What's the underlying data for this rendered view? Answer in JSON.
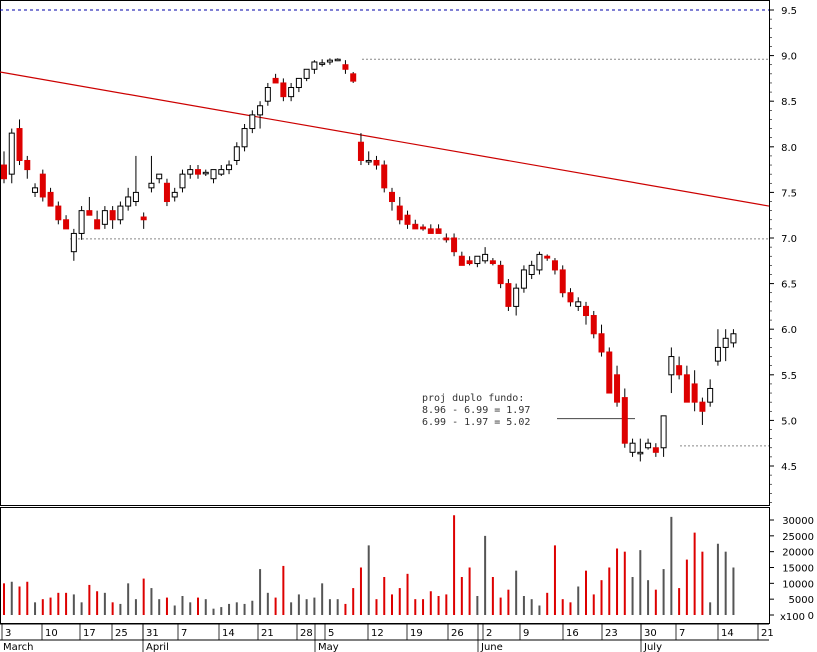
{
  "chart_data": {
    "type": "candlestick",
    "price_axis": {
      "ticks": [
        "9.5",
        "9.0",
        "8.5",
        "8.0",
        "7.5",
        "7.0",
        "6.5",
        "6.0",
        "5.5",
        "5.0",
        "4.5"
      ],
      "ylim": [
        4.0,
        9.6
      ],
      "scale": "linear"
    },
    "volume_axis": {
      "ticks": [
        "30000",
        "25000",
        "20000",
        "15000",
        "10000",
        "5000",
        "0"
      ],
      "multiplier_label": "x100",
      "ylim": [
        0,
        32000
      ]
    },
    "x_axis": {
      "day_labels": [
        "3",
        "10",
        "17",
        "25",
        "31",
        "7",
        "14",
        "21",
        "28",
        "5",
        "12",
        "19",
        "26",
        "2",
        "9",
        "16",
        "23",
        "30",
        "7",
        "14",
        "21"
      ],
      "month_labels": [
        "March",
        "April",
        "May",
        "June",
        "July"
      ]
    },
    "reference_lines": [
      {
        "kind": "horizontal-dashed",
        "value": 9.5,
        "color": "#0000aa"
      },
      {
        "kind": "horizontal-dotted",
        "value": 8.96,
        "color": "#888888"
      },
      {
        "kind": "horizontal-dotted",
        "value": 6.99,
        "color": "#888888"
      },
      {
        "kind": "horizontal-dotted",
        "value": 4.72,
        "color": "#888888"
      },
      {
        "kind": "trendline",
        "from": {
          "day": 0,
          "price": 8.82
        },
        "to": {
          "day": 95,
          "price": 7.35
        },
        "color": "#cc0000"
      },
      {
        "kind": "target-segment",
        "from_day": 69,
        "to_day": 79,
        "price": 5.02,
        "color": "#444444"
      }
    ],
    "annotation": {
      "lines": [
        "proj duplo fundo:",
        "8.96 - 6.99 = 1.97",
        "6.99 - 1.97 = 5.02"
      ]
    },
    "colors": {
      "up": "#ffffff",
      "down": "#dd0000",
      "up_volume": "#555555",
      "down_volume": "#dd0000"
    },
    "candles": [
      [
        7.8,
        7.95,
        7.6,
        7.65
      ],
      [
        7.7,
        8.2,
        7.6,
        8.15
      ],
      [
        8.2,
        8.3,
        7.8,
        7.85
      ],
      [
        7.85,
        7.9,
        7.65,
        7.75
      ],
      [
        7.5,
        7.6,
        7.45,
        7.55
      ],
      [
        7.7,
        7.75,
        7.4,
        7.45
      ],
      [
        7.5,
        7.55,
        7.35,
        7.35
      ],
      [
        7.35,
        7.4,
        7.15,
        7.2
      ],
      [
        7.2,
        7.25,
        7.1,
        7.1
      ],
      [
        6.85,
        7.1,
        6.75,
        7.05
      ],
      [
        7.05,
        7.35,
        6.98,
        7.3
      ],
      [
        7.3,
        7.45,
        7.25,
        7.25
      ],
      [
        7.2,
        7.3,
        7.1,
        7.1
      ],
      [
        7.15,
        7.35,
        7.1,
        7.3
      ],
      [
        7.3,
        7.35,
        7.1,
        7.2
      ],
      [
        7.2,
        7.4,
        7.15,
        7.35
      ],
      [
        7.35,
        7.55,
        7.3,
        7.45
      ],
      [
        7.4,
        7.9,
        7.35,
        7.5
      ],
      [
        7.23,
        7.28,
        7.1,
        7.2
      ],
      [
        7.55,
        7.9,
        7.5,
        7.6
      ],
      [
        7.65,
        7.7,
        7.6,
        7.7
      ],
      [
        7.6,
        7.65,
        7.35,
        7.4
      ],
      [
        7.45,
        7.55,
        7.4,
        7.5
      ],
      [
        7.55,
        7.75,
        7.5,
        7.7
      ],
      [
        7.7,
        7.8,
        7.65,
        7.75
      ],
      [
        7.75,
        7.8,
        7.65,
        7.7
      ],
      [
        7.72,
        7.75,
        7.68,
        7.72
      ],
      [
        7.65,
        7.75,
        7.6,
        7.75
      ],
      [
        7.7,
        7.8,
        7.68,
        7.75
      ],
      [
        7.75,
        7.85,
        7.7,
        7.8
      ],
      [
        7.85,
        8.05,
        7.8,
        8.0
      ],
      [
        8.0,
        8.25,
        7.95,
        8.2
      ],
      [
        8.2,
        8.4,
        8.15,
        8.35
      ],
      [
        8.35,
        8.5,
        8.2,
        8.45
      ],
      [
        8.5,
        8.7,
        8.45,
        8.65
      ],
      [
        8.75,
        8.8,
        8.7,
        8.7
      ],
      [
        8.7,
        8.75,
        8.5,
        8.55
      ],
      [
        8.55,
        8.7,
        8.5,
        8.65
      ],
      [
        8.65,
        8.75,
        8.6,
        8.75
      ],
      [
        8.75,
        8.85,
        8.72,
        8.85
      ],
      [
        8.85,
        8.95,
        8.8,
        8.93
      ],
      [
        8.92,
        8.96,
        8.88,
        8.92
      ],
      [
        8.93,
        8.97,
        8.9,
        8.95
      ],
      [
        8.96,
        8.97,
        8.94,
        8.96
      ],
      [
        8.9,
        8.95,
        8.8,
        8.85
      ],
      [
        8.8,
        8.82,
        8.7,
        8.72
      ],
      [
        8.05,
        8.15,
        7.8,
        7.85
      ],
      [
        7.85,
        7.95,
        7.8,
        7.85
      ],
      [
        7.85,
        7.9,
        7.75,
        7.8
      ],
      [
        7.8,
        7.85,
        7.5,
        7.55
      ],
      [
        7.5,
        7.55,
        7.3,
        7.4
      ],
      [
        7.35,
        7.45,
        7.15,
        7.2
      ],
      [
        7.25,
        7.3,
        7.1,
        7.15
      ],
      [
        7.15,
        7.2,
        7.1,
        7.1
      ],
      [
        7.12,
        7.15,
        7.08,
        7.1
      ],
      [
        7.1,
        7.15,
        7.05,
        7.05
      ],
      [
        7.1,
        7.15,
        7.05,
        7.05
      ],
      [
        7.0,
        7.05,
        6.95,
        6.98
      ],
      [
        7.0,
        7.05,
        6.8,
        6.85
      ],
      [
        6.8,
        6.85,
        6.7,
        6.7
      ],
      [
        6.75,
        6.8,
        6.7,
        6.72
      ],
      [
        6.72,
        6.8,
        6.68,
        6.8
      ],
      [
        6.75,
        6.9,
        6.72,
        6.82
      ],
      [
        6.75,
        6.78,
        6.7,
        6.72
      ],
      [
        6.7,
        6.75,
        6.45,
        6.5
      ],
      [
        6.5,
        6.55,
        6.2,
        6.25
      ],
      [
        6.25,
        6.5,
        6.15,
        6.45
      ],
      [
        6.45,
        6.7,
        6.4,
        6.65
      ],
      [
        6.6,
        6.75,
        6.55,
        6.7
      ],
      [
        6.65,
        6.85,
        6.6,
        6.82
      ],
      [
        6.8,
        6.82,
        6.75,
        6.78
      ],
      [
        6.75,
        6.78,
        6.6,
        6.65
      ],
      [
        6.65,
        6.7,
        6.35,
        6.4
      ],
      [
        6.4,
        6.45,
        6.25,
        6.3
      ],
      [
        6.25,
        6.35,
        6.2,
        6.3
      ],
      [
        6.25,
        6.3,
        6.05,
        6.15
      ],
      [
        6.15,
        6.2,
        5.9,
        5.95
      ],
      [
        5.95,
        6.05,
        5.7,
        5.75
      ],
      [
        5.75,
        5.8,
        5.3,
        5.3
      ],
      [
        5.5,
        5.6,
        5.15,
        5.2
      ],
      [
        5.25,
        5.35,
        4.7,
        4.75
      ],
      [
        4.65,
        4.8,
        4.6,
        4.75
      ],
      [
        4.65,
        4.8,
        4.55,
        4.65
      ],
      [
        4.7,
        4.8,
        4.68,
        4.75
      ],
      [
        4.7,
        4.75,
        4.6,
        4.65
      ],
      [
        4.7,
        5.05,
        4.6,
        5.05
      ],
      [
        5.5,
        5.8,
        5.3,
        5.7
      ],
      [
        5.6,
        5.7,
        5.45,
        5.5
      ],
      [
        5.5,
        5.6,
        5.2,
        5.2
      ],
      [
        5.4,
        5.55,
        5.1,
        5.2
      ],
      [
        5.2,
        5.25,
        4.95,
        5.1
      ],
      [
        5.2,
        5.45,
        5.15,
        5.35
      ],
      [
        5.65,
        6.0,
        5.6,
        5.8
      ],
      [
        5.8,
        6.0,
        5.65,
        5.9
      ],
      [
        5.85,
        6.0,
        5.8,
        5.95
      ]
    ],
    "volumes": [
      10000,
      10500,
      9000,
      10500,
      4000,
      5000,
      5500,
      7000,
      7000,
      6500,
      4000,
      9500,
      7500,
      7000,
      4000,
      3500,
      10000,
      5000,
      11500,
      8500,
      5000,
      5500,
      3000,
      6000,
      4000,
      5500,
      5000,
      2000,
      2500,
      3500,
      4000,
      3500,
      4500,
      14500,
      7000,
      5500,
      15500,
      4000,
      6500,
      5000,
      5500,
      10000,
      5000,
      5000,
      3500,
      8500,
      15000,
      22000,
      5000,
      12000,
      6500,
      8500,
      13000,
      5000,
      5000,
      7500,
      6000,
      6500,
      31500,
      12000,
      15000,
      6000,
      25000,
      12000,
      5500,
      8000,
      14000,
      6000,
      5000,
      3000,
      7000,
      22000,
      5000,
      4000,
      9000,
      14000,
      6500,
      11000,
      15000,
      21000,
      20000,
      12000,
      20500,
      11000,
      8000,
      14500,
      31000,
      8500,
      17500,
      26000,
      20000,
      4000,
      22500,
      20000,
      15000
    ]
  }
}
